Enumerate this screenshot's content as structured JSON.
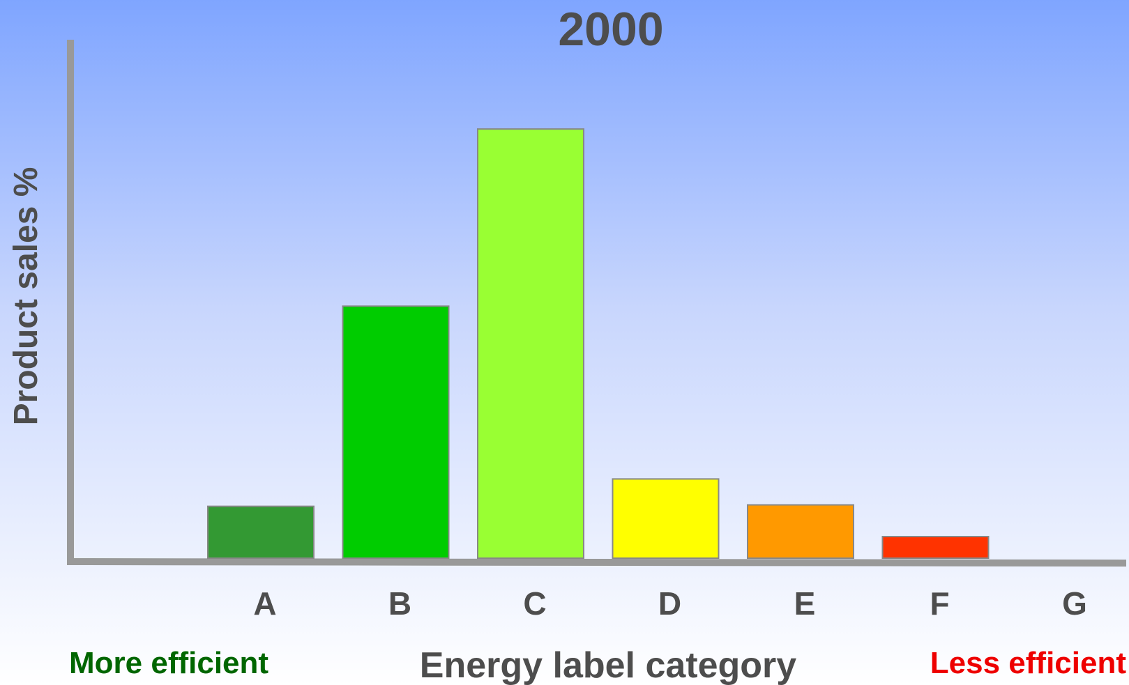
{
  "chart_data": {
    "type": "bar",
    "title": "2000",
    "categories": [
      "A",
      "B",
      "C",
      "D",
      "E",
      "F",
      "G"
    ],
    "values": [
      3.6,
      17.5,
      29.8,
      5.5,
      3.7,
      1.5,
      0
    ],
    "ylim": [
      0,
      36
    ],
    "ylabel": "Product sales %",
    "xlabel": "Energy label category",
    "grid": false,
    "legend": "none",
    "bar_colors": [
      "#339933",
      "#00cc00",
      "#99ff33",
      "#ffff00",
      "#ff9900",
      "#ff3300",
      "#ff0000"
    ],
    "annotations": {
      "left_note": "More efficient",
      "left_note_color": "#006600",
      "right_note": "Less efficient",
      "right_note_color": "#ee0000"
    }
  }
}
